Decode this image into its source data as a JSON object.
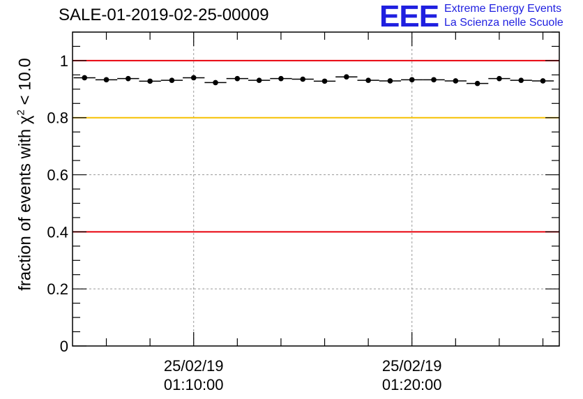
{
  "header": {
    "title": "SALE-01-2019-02-25-00009",
    "logo_text": "EEE",
    "logo_line1": "Extreme Energy Events",
    "logo_line2": "La Scienza nelle Scuole"
  },
  "chart_data": {
    "type": "scatter",
    "title": "SALE-01-2019-02-25-00009",
    "ylabel_prefix": "fraction of events with χ",
    "ylabel_sup": "2",
    "ylabel_suffix": " < 10.0",
    "xlabel": "",
    "ylim": [
      0,
      1.1
    ],
    "y_ticks": [
      0,
      0.2,
      0.4,
      0.6,
      0.8,
      1
    ],
    "y_tick_labels": [
      "0",
      "0.2",
      "0.4",
      "0.6",
      "0.8",
      "1"
    ],
    "x_unit": "minutes after 01:00:00 on 25/02/19",
    "xlim": [
      4.45,
      26.75
    ],
    "x_tick_positions": [
      10,
      20
    ],
    "x_tick_labels": [
      [
        "25/02/19",
        "01:10:00"
      ],
      [
        "25/02/19",
        "01:20:00"
      ]
    ],
    "grid": true,
    "reference_lines": [
      {
        "y": 1.0,
        "color": "#e8000b"
      },
      {
        "y": 0.8,
        "color": "#f6c000"
      },
      {
        "y": 0.4,
        "color": "#e8000b"
      }
    ],
    "series": [
      {
        "marker_color": "#000000",
        "points": [
          {
            "x": 5.0,
            "y": 0.94
          },
          {
            "x": 6.0,
            "y": 0.933
          },
          {
            "x": 7.0,
            "y": 0.937
          },
          {
            "x": 8.0,
            "y": 0.928
          },
          {
            "x": 9.0,
            "y": 0.931
          },
          {
            "x": 10.0,
            "y": 0.94
          },
          {
            "x": 11.0,
            "y": 0.923
          },
          {
            "x": 12.0,
            "y": 0.937
          },
          {
            "x": 13.0,
            "y": 0.931
          },
          {
            "x": 14.0,
            "y": 0.937
          },
          {
            "x": 15.0,
            "y": 0.935
          },
          {
            "x": 16.0,
            "y": 0.928
          },
          {
            "x": 17.0,
            "y": 0.943
          },
          {
            "x": 18.0,
            "y": 0.931
          },
          {
            "x": 19.0,
            "y": 0.929
          },
          {
            "x": 20.0,
            "y": 0.933
          },
          {
            "x": 21.0,
            "y": 0.933
          },
          {
            "x": 22.0,
            "y": 0.929
          },
          {
            "x": 23.0,
            "y": 0.92
          },
          {
            "x": 24.0,
            "y": 0.937
          },
          {
            "x": 25.0,
            "y": 0.931
          },
          {
            "x": 26.0,
            "y": 0.929
          }
        ]
      }
    ]
  }
}
